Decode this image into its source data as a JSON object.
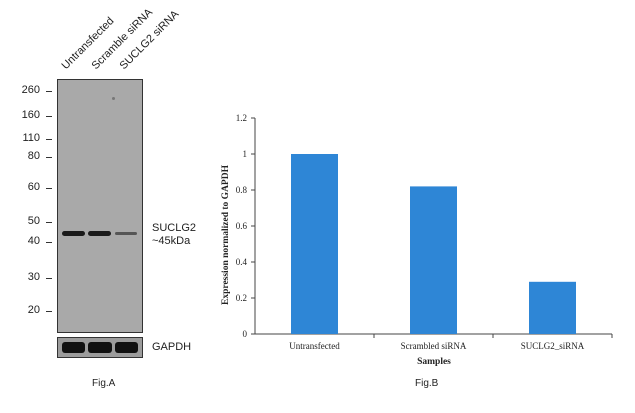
{
  "western_blot": {
    "lanes": [
      "Untransfected",
      "Scramble siRNA",
      "SUCLG2 siRNA"
    ],
    "mw_markers": [
      "260",
      "160",
      "110",
      "80",
      "60",
      "50",
      "40",
      "30",
      "20"
    ],
    "target_label_line1": "SUCLG2",
    "target_label_line2": "~45kDa",
    "loading_control": "GAPDH",
    "caption": "Fig.A"
  },
  "chart_data": {
    "type": "bar",
    "categories": [
      "Untransfected",
      "Scrambled siRNA",
      "SUCLG2_siRNA"
    ],
    "values": [
      1.0,
      0.82,
      0.29
    ],
    "xlabel": "Samples",
    "ylabel": "Expression  normalized to GAPDH",
    "ylim": [
      0,
      1.2
    ],
    "yticks": [
      "0",
      "0.2",
      "0.4",
      "0.6",
      "0.8",
      "1",
      "1.2"
    ],
    "bar_color": "#2e86d6",
    "grid": false,
    "caption": "Fig.B"
  }
}
